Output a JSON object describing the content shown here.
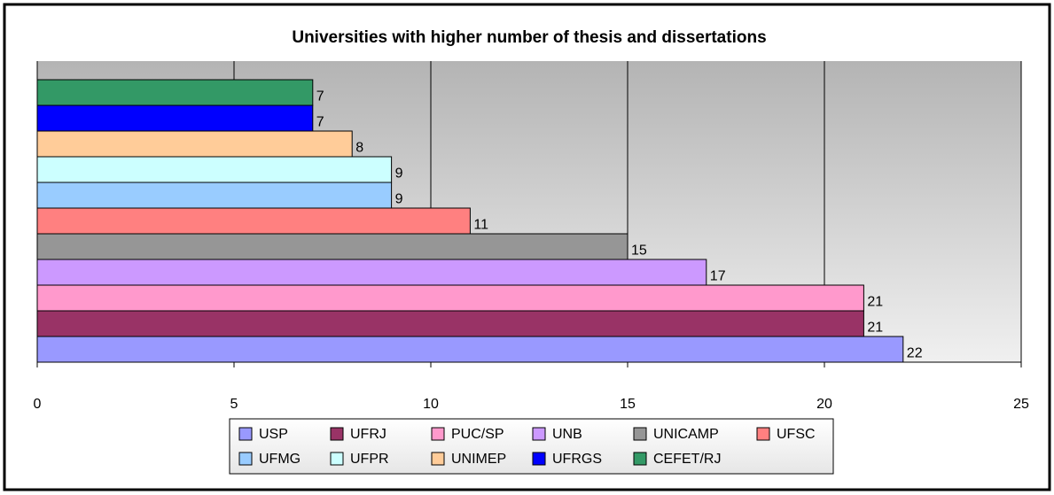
{
  "chart_data": {
    "type": "bar",
    "orientation": "horizontal",
    "title": "Universities with higher number of thesis and dissertations",
    "categories": [
      "USP",
      "UFRJ",
      "PUC/SP",
      "UNB",
      "UNICAMP",
      "UFSC",
      "UFMG",
      "UFPR",
      "UNIMEP",
      "UFRGS",
      "CEFET/RJ"
    ],
    "values": [
      22,
      21,
      21,
      17,
      15,
      11,
      9,
      9,
      8,
      7,
      7
    ],
    "colors": [
      "#9999ff",
      "#993366",
      "#ff99cc",
      "#cc99ff",
      "#969696",
      "#ff8080",
      "#99ccff",
      "#ccffff",
      "#ffcc99",
      "#0000ff",
      "#339966"
    ],
    "xlim": [
      0,
      25
    ],
    "xticks": [
      0,
      5,
      10,
      15,
      20,
      25
    ],
    "grid": true,
    "legend": "bottom"
  }
}
